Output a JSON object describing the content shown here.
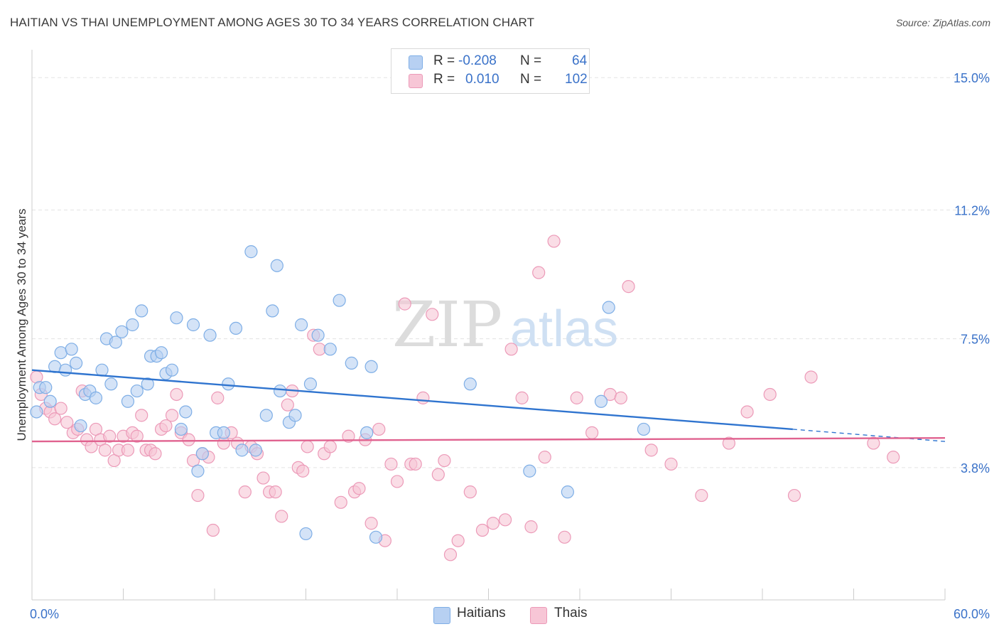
{
  "header": {
    "title": "HAITIAN VS THAI UNEMPLOYMENT AMONG AGES 30 TO 34 YEARS CORRELATION CHART",
    "source": "Source: ZipAtlas.com"
  },
  "watermark": {
    "part1": "ZIP",
    "part2": "atlas"
  },
  "stats_legend": {
    "rows": [
      {
        "r_label": "R =",
        "r_value": "-0.208",
        "n_label": "N =",
        "n_value": "64",
        "color": "#7eaee6"
      },
      {
        "r_label": "R =",
        "r_value": "0.010",
        "n_label": "N =",
        "n_value": "102",
        "color": "#f0a0bf"
      }
    ]
  },
  "series_legend": [
    {
      "name": "Haitians",
      "color": "#7eaee6"
    },
    {
      "name": "Thais",
      "color": "#f0a0bf"
    }
  ],
  "colors": {
    "haitian_fill": "#b7d0f2",
    "haitian_stroke": "#7eaee6",
    "haitian_line": "#2f74cf",
    "thai_fill": "#f7c6d6",
    "thai_stroke": "#ec9ab8",
    "thai_line": "#e0628f",
    "axis_label": "#3a72c9"
  },
  "chart_data": {
    "type": "scatter",
    "title": "HAITIAN VS THAI UNEMPLOYMENT AMONG AGES 30 TO 34 YEARS CORRELATION CHART",
    "xlabel": "",
    "ylabel": "Unemployment Among Ages 30 to 34 years",
    "xlim": [
      0,
      60
    ],
    "ylim": [
      0,
      15.8
    ],
    "x_tick_labels": [
      "0.0%",
      "60.0%"
    ],
    "y_tick_values": [
      3.8,
      7.5,
      11.2,
      15.0
    ],
    "y_tick_labels": [
      "3.8%",
      "7.5%",
      "11.2%",
      "15.0%"
    ],
    "grid": "horizontal dashed",
    "legend": "top-center",
    "series": [
      {
        "name": "Haitians",
        "trend": {
          "x0": 0,
          "y0": 6.6,
          "x1": 50.0,
          "y1": 4.9,
          "dash_to_x": 60,
          "dash_to_y": 4.55
        },
        "points": [
          [
            0.3,
            5.4
          ],
          [
            0.5,
            6.1
          ],
          [
            0.9,
            6.1
          ],
          [
            1.2,
            5.7
          ],
          [
            1.5,
            6.7
          ],
          [
            1.9,
            7.1
          ],
          [
            2.2,
            6.6
          ],
          [
            2.6,
            7.2
          ],
          [
            2.9,
            6.8
          ],
          [
            3.2,
            5.0
          ],
          [
            3.5,
            5.9
          ],
          [
            3.8,
            6.0
          ],
          [
            4.2,
            5.8
          ],
          [
            4.6,
            6.6
          ],
          [
            4.9,
            7.5
          ],
          [
            5.2,
            6.2
          ],
          [
            5.5,
            7.4
          ],
          [
            5.9,
            7.7
          ],
          [
            6.3,
            5.7
          ],
          [
            6.6,
            7.9
          ],
          [
            6.9,
            6.0
          ],
          [
            7.2,
            8.3
          ],
          [
            7.6,
            6.2
          ],
          [
            7.8,
            7.0
          ],
          [
            8.2,
            7.0
          ],
          [
            8.5,
            7.1
          ],
          [
            8.8,
            6.5
          ],
          [
            9.2,
            6.6
          ],
          [
            9.5,
            8.1
          ],
          [
            9.8,
            4.9
          ],
          [
            10.1,
            5.4
          ],
          [
            10.6,
            7.9
          ],
          [
            10.9,
            3.7
          ],
          [
            11.2,
            4.2
          ],
          [
            11.7,
            7.6
          ],
          [
            12.1,
            4.8
          ],
          [
            12.6,
            4.8
          ],
          [
            12.9,
            6.2
          ],
          [
            13.4,
            7.8
          ],
          [
            13.8,
            4.3
          ],
          [
            14.4,
            10.0
          ],
          [
            14.7,
            4.3
          ],
          [
            15.4,
            5.3
          ],
          [
            15.8,
            8.3
          ],
          [
            16.1,
            9.6
          ],
          [
            16.3,
            6.0
          ],
          [
            16.9,
            5.1
          ],
          [
            17.3,
            5.3
          ],
          [
            17.7,
            7.9
          ],
          [
            18.0,
            1.9
          ],
          [
            18.3,
            6.2
          ],
          [
            18.8,
            7.6
          ],
          [
            19.6,
            7.2
          ],
          [
            20.2,
            8.6
          ],
          [
            21.0,
            6.8
          ],
          [
            22.0,
            4.8
          ],
          [
            22.3,
            6.7
          ],
          [
            22.6,
            1.8
          ],
          [
            28.8,
            6.2
          ],
          [
            32.7,
            3.7
          ],
          [
            35.2,
            3.1
          ],
          [
            37.4,
            5.7
          ],
          [
            37.9,
            8.4
          ],
          [
            40.2,
            4.9
          ]
        ]
      },
      {
        "name": "Thais",
        "trend": {
          "x0": 0,
          "y0": 4.55,
          "x1": 60,
          "y1": 4.65
        },
        "points": [
          [
            0.3,
            6.4
          ],
          [
            0.6,
            5.9
          ],
          [
            0.9,
            5.5
          ],
          [
            1.2,
            5.4
          ],
          [
            1.5,
            5.2
          ],
          [
            1.9,
            5.5
          ],
          [
            2.3,
            5.1
          ],
          [
            2.7,
            4.8
          ],
          [
            3.0,
            4.9
          ],
          [
            3.3,
            6.0
          ],
          [
            3.6,
            4.6
          ],
          [
            3.9,
            4.4
          ],
          [
            4.2,
            4.9
          ],
          [
            4.5,
            4.6
          ],
          [
            4.8,
            4.3
          ],
          [
            5.1,
            4.7
          ],
          [
            5.4,
            4.0
          ],
          [
            5.7,
            4.3
          ],
          [
            6.0,
            4.7
          ],
          [
            6.3,
            4.3
          ],
          [
            6.6,
            4.8
          ],
          [
            6.9,
            4.7
          ],
          [
            7.2,
            5.3
          ],
          [
            7.5,
            4.3
          ],
          [
            7.8,
            4.3
          ],
          [
            8.1,
            4.2
          ],
          [
            8.5,
            4.9
          ],
          [
            8.8,
            5.0
          ],
          [
            9.2,
            5.3
          ],
          [
            9.5,
            5.9
          ],
          [
            9.8,
            4.8
          ],
          [
            10.3,
            4.6
          ],
          [
            10.6,
            4.0
          ],
          [
            10.9,
            3.0
          ],
          [
            11.2,
            4.2
          ],
          [
            11.6,
            4.1
          ],
          [
            11.9,
            2.0
          ],
          [
            12.2,
            5.8
          ],
          [
            12.6,
            4.5
          ],
          [
            13.1,
            4.8
          ],
          [
            13.5,
            4.5
          ],
          [
            14.0,
            3.1
          ],
          [
            14.4,
            4.4
          ],
          [
            14.8,
            4.2
          ],
          [
            15.2,
            3.5
          ],
          [
            15.6,
            3.1
          ],
          [
            16.0,
            3.1
          ],
          [
            16.4,
            2.4
          ],
          [
            16.8,
            5.6
          ],
          [
            17.1,
            6.0
          ],
          [
            17.5,
            3.8
          ],
          [
            17.8,
            3.7
          ],
          [
            18.1,
            4.4
          ],
          [
            18.5,
            7.6
          ],
          [
            18.9,
            7.2
          ],
          [
            19.2,
            4.2
          ],
          [
            19.6,
            4.4
          ],
          [
            20.3,
            2.8
          ],
          [
            20.8,
            4.7
          ],
          [
            21.2,
            3.1
          ],
          [
            21.5,
            3.2
          ],
          [
            21.9,
            4.6
          ],
          [
            22.3,
            2.2
          ],
          [
            22.8,
            4.9
          ],
          [
            23.2,
            1.7
          ],
          [
            23.6,
            3.9
          ],
          [
            24.0,
            3.4
          ],
          [
            24.5,
            8.5
          ],
          [
            24.9,
            3.9
          ],
          [
            25.2,
            3.9
          ],
          [
            25.7,
            5.8
          ],
          [
            26.3,
            8.2
          ],
          [
            26.7,
            3.6
          ],
          [
            27.1,
            4.0
          ],
          [
            27.5,
            1.3
          ],
          [
            28.0,
            1.7
          ],
          [
            28.8,
            3.1
          ],
          [
            29.6,
            2.0
          ],
          [
            30.3,
            2.2
          ],
          [
            31.1,
            2.3
          ],
          [
            31.5,
            7.2
          ],
          [
            32.2,
            5.8
          ],
          [
            32.8,
            2.1
          ],
          [
            33.3,
            9.4
          ],
          [
            33.7,
            4.1
          ],
          [
            34.3,
            10.3
          ],
          [
            35.0,
            1.8
          ],
          [
            35.8,
            5.8
          ],
          [
            36.8,
            4.8
          ],
          [
            38.0,
            5.9
          ],
          [
            38.7,
            5.8
          ],
          [
            39.2,
            9.0
          ],
          [
            42.0,
            3.9
          ],
          [
            44.0,
            3.0
          ],
          [
            45.8,
            4.5
          ],
          [
            47.0,
            5.4
          ],
          [
            48.5,
            5.9
          ],
          [
            50.1,
            3.0
          ],
          [
            51.2,
            6.4
          ],
          [
            55.3,
            4.5
          ],
          [
            56.6,
            4.1
          ],
          [
            40.7,
            4.3
          ]
        ]
      }
    ]
  }
}
